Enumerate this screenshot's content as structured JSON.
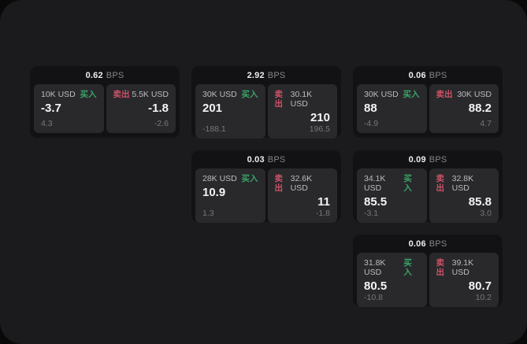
{
  "labels": {
    "buy": "买入",
    "sell": "卖出",
    "bps_unit": "BPS"
  },
  "colors": {
    "outer_bg": "#09090a",
    "panel_bg": "#1b1b1d",
    "card_bg": "#121214",
    "tile_bg": "#29292c",
    "buy_green": "#3aa367",
    "sell_red": "#cd5266"
  },
  "cards": [
    {
      "bps": "0.62",
      "buy": {
        "amount": "10K USD",
        "price": "-3.7",
        "delta": "4.3"
      },
      "sell": {
        "amount": "5.5K USD",
        "price": "-1.8",
        "delta": "-2.6"
      }
    },
    {
      "bps": "2.92",
      "buy": {
        "amount": "30K USD",
        "price": "201",
        "delta": "-188.1"
      },
      "sell": {
        "amount": "30.1K USD",
        "price": "210",
        "delta": "196.5"
      }
    },
    {
      "bps": "0.06",
      "buy": {
        "amount": "30K USD",
        "price": "88",
        "delta": "-4.9"
      },
      "sell": {
        "amount": "30K USD",
        "price": "88.2",
        "delta": "4.7"
      }
    },
    {
      "bps": "0.03",
      "buy": {
        "amount": "28K USD",
        "price": "10.9",
        "delta": "1.3"
      },
      "sell": {
        "amount": "32.6K USD",
        "price": "11",
        "delta": "-1.8"
      }
    },
    {
      "bps": "0.09",
      "buy": {
        "amount": "34.1K USD",
        "price": "85.5",
        "delta": "-3.1"
      },
      "sell": {
        "amount": "32.8K USD",
        "price": "85.8",
        "delta": "3.0"
      }
    },
    {
      "bps": "0.06",
      "buy": {
        "amount": "31.8K USD",
        "price": "80.5",
        "delta": "-10.8"
      },
      "sell": {
        "amount": "39.1K USD",
        "price": "80.7",
        "delta": "10.2"
      }
    }
  ]
}
